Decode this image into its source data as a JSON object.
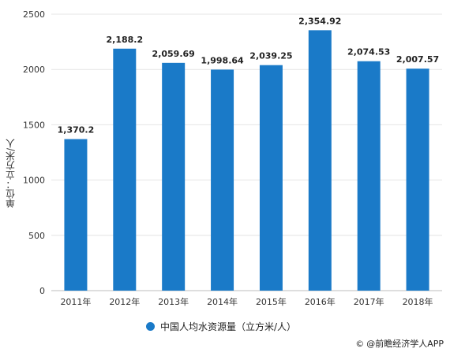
{
  "chart_data": {
    "type": "bar",
    "categories": [
      "2011年",
      "2012年",
      "2013年",
      "2014年",
      "2015年",
      "2016年",
      "2017年",
      "2018年"
    ],
    "values": [
      1370.2,
      2188.2,
      2059.69,
      1998.64,
      2039.25,
      2354.92,
      2074.53,
      2007.57
    ],
    "value_labels": [
      "1,370.2",
      "2,188.2",
      "2,059.69",
      "1,998.64",
      "2,039.25",
      "2,354.92",
      "2,074.53",
      "2,007.57"
    ],
    "yticks": [
      0,
      500,
      1000,
      1500,
      2000,
      2500
    ],
    "ylim": [
      0,
      2500
    ],
    "ylabel": "单位：立方米/人",
    "grid": true,
    "legend_position": "bottom-center",
    "colors": {
      "bar": "#1a7ac8",
      "grid": "#e4e4e4",
      "text": "#333333"
    }
  },
  "legend": {
    "label": "中国人均水资源量（立方米/人）"
  },
  "source": {
    "icon": "copyright-icon",
    "text": "@前瞻经济学人APP"
  }
}
